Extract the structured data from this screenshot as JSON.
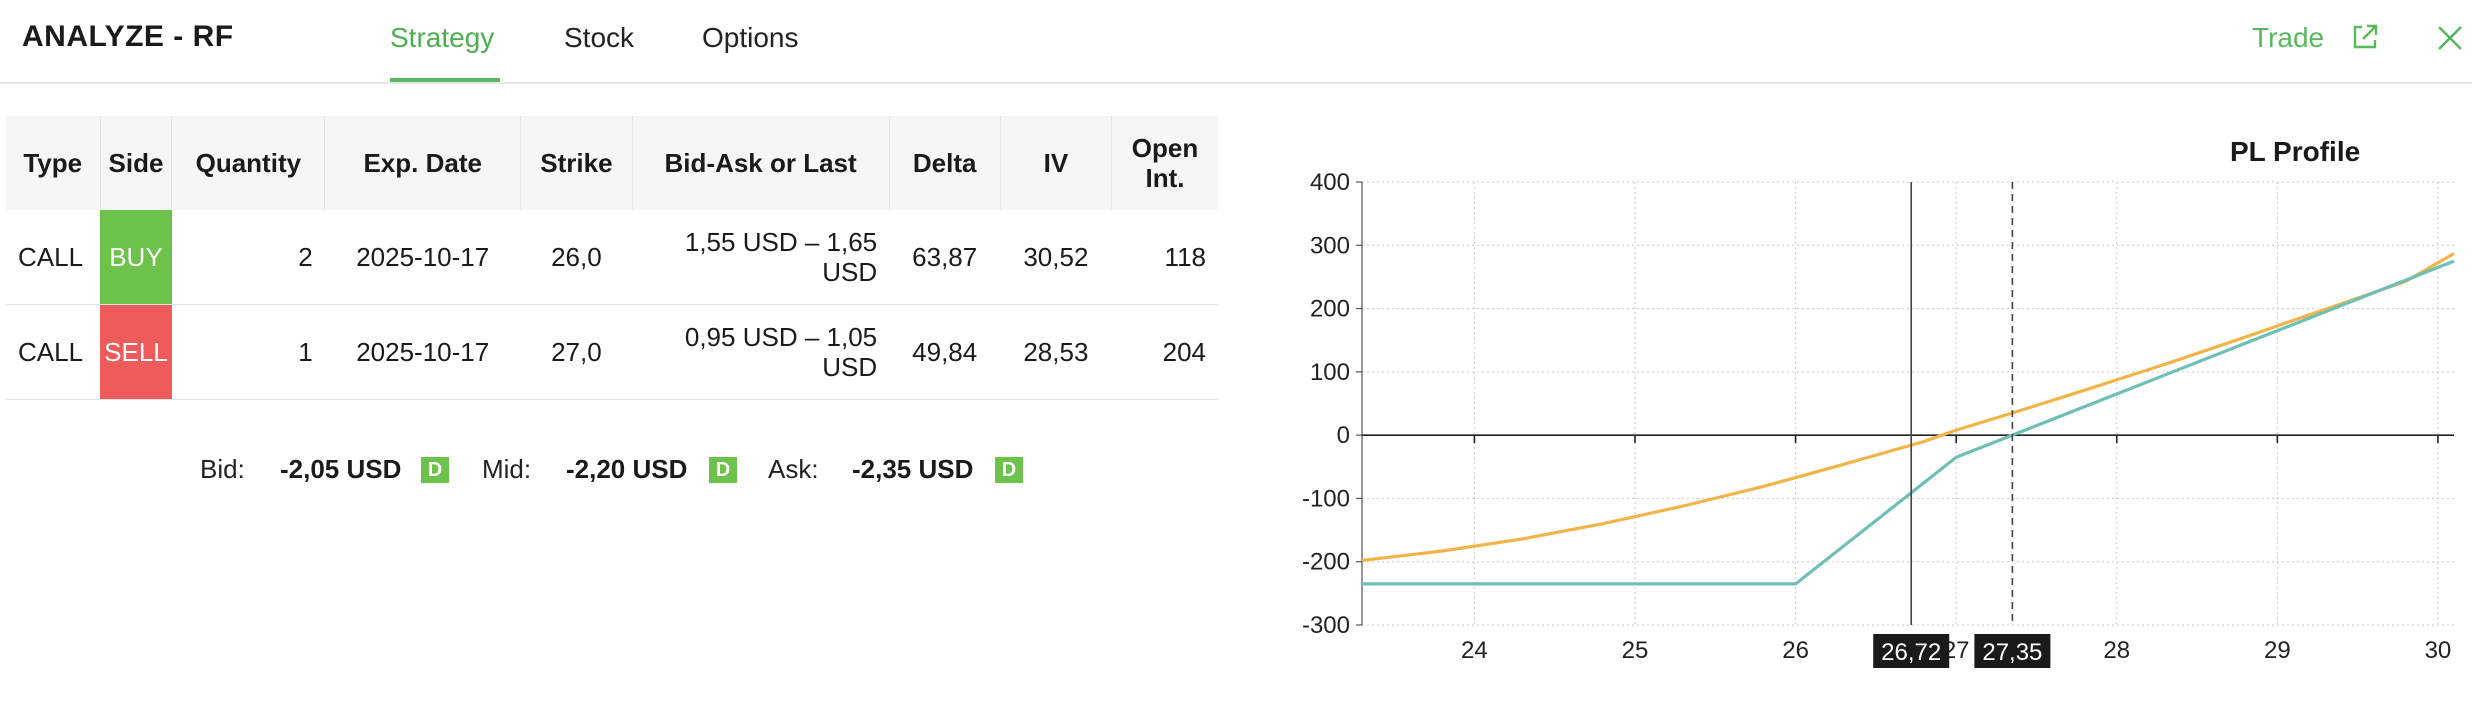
{
  "header": {
    "title": "ANALYZE - RF",
    "tabs": [
      {
        "label": "Strategy",
        "active": true
      },
      {
        "label": "Stock",
        "active": false
      },
      {
        "label": "Options",
        "active": false
      }
    ],
    "trade_label": "Trade",
    "icons": [
      "external-link-icon",
      "close-icon"
    ]
  },
  "legs": {
    "columns": [
      "Type",
      "Side",
      "Quantity",
      "Exp. Date",
      "Strike",
      "Bid-Ask or Last",
      "Delta",
      "IV",
      "Open Int."
    ],
    "rows": [
      {
        "type": "CALL",
        "side": "BUY",
        "quantity": "2",
        "exp_date": "2025-10-17",
        "strike": "26,0",
        "bid_ask": "1,55 USD – 1,65 USD",
        "delta": "63,87",
        "iv": "30,52",
        "open_int": "118"
      },
      {
        "type": "CALL",
        "side": "SELL",
        "quantity": "1",
        "exp_date": "2025-10-17",
        "strike": "27,0",
        "bid_ask": "0,95 USD – 1,05 USD",
        "delta": "49,84",
        "iv": "28,53",
        "open_int": "204"
      }
    ]
  },
  "quote": {
    "bid_label": "Bid:",
    "bid_value": "-2,05 USD",
    "mid_label": "Mid:",
    "mid_value": "-2,20 USD",
    "ask_label": "Ask:",
    "ask_value": "-2,35 USD",
    "badge": "D"
  },
  "colors": {
    "accent": "#57b85c",
    "buy": "#6cc24a",
    "sell": "#ef5a5a",
    "today_curve": "#f2b448",
    "expiry_curve": "#6dbfb8"
  },
  "chart_data": {
    "type": "line",
    "title": "PL Profile",
    "xlim": [
      23.3,
      30.1
    ],
    "ylim": [
      -300,
      400
    ],
    "x_ticks": [
      24,
      25,
      26,
      27,
      28,
      29,
      30
    ],
    "y_ticks": [
      400,
      300,
      200,
      100,
      0,
      -100,
      -200,
      -300
    ],
    "grid": true,
    "series": [
      {
        "color": "#f2b448",
        "x": [
          23.3,
          23.8,
          24.3,
          24.8,
          25.3,
          25.8,
          26.3,
          26.8,
          27.0,
          27.35,
          27.8,
          28.3,
          28.8,
          29.3,
          29.8,
          30.1
        ],
        "y": [
          -198,
          -183,
          -164,
          -140,
          -112,
          -81,
          -46,
          -10,
          8,
          35,
          71,
          112,
          155,
          199,
          243,
          287
        ]
      },
      {
        "color": "#6dbfb8",
        "x": [
          23.3,
          26.0,
          27.0,
          27.35,
          30.1
        ],
        "y": [
          -235,
          -235,
          -35,
          0,
          275
        ]
      }
    ],
    "markers": [
      {
        "x": 26.72,
        "label": "26,72",
        "style": "solid"
      },
      {
        "x": 27.35,
        "label": "27,35",
        "style": "dashed"
      }
    ]
  }
}
